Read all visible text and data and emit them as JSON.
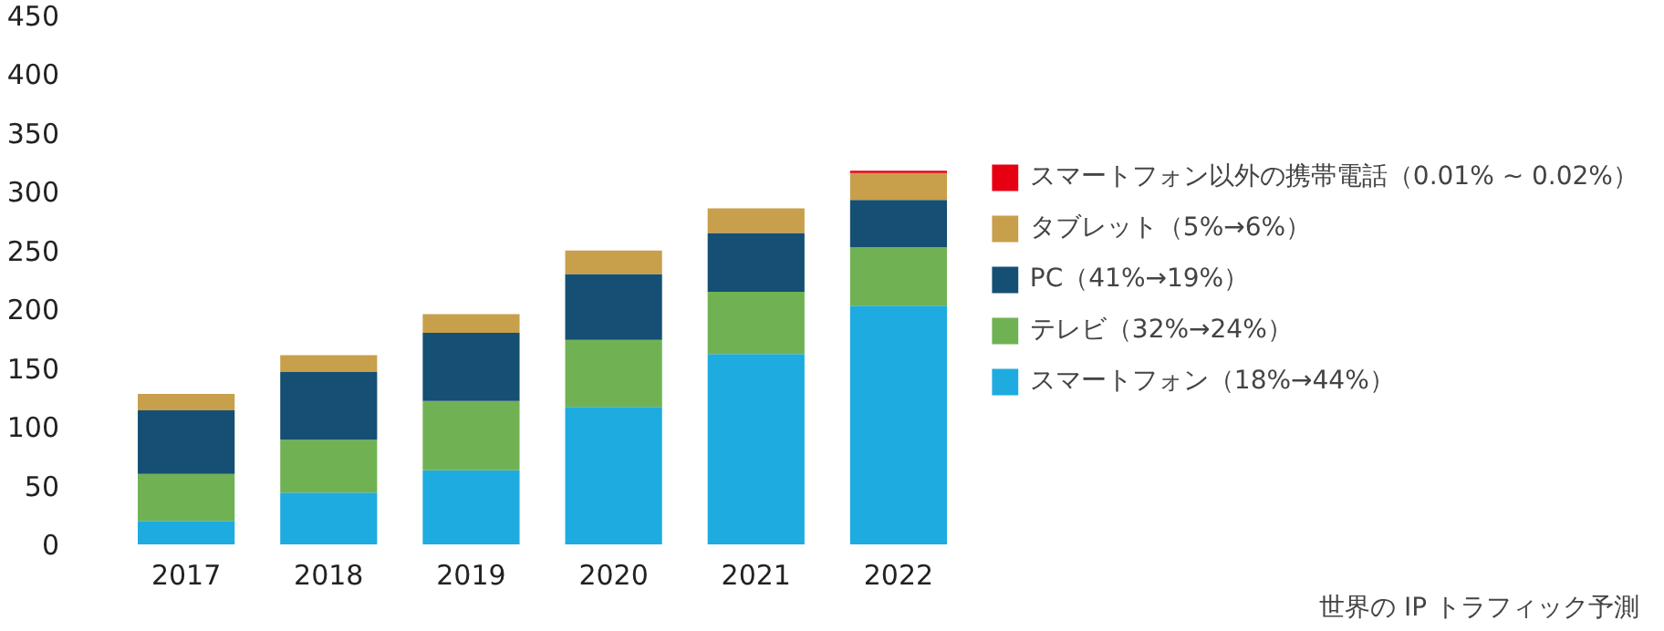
{
  "chart_data": {
    "type": "bar",
    "stacked": true,
    "categories": [
      "2017",
      "2018",
      "2019",
      "2020",
      "2021",
      "2022"
    ],
    "series": [
      {
        "name": "スマートフォン（18%→44%）",
        "color": "#1eabdf",
        "values": [
          20,
          44,
          63,
          117,
          162,
          203
        ]
      },
      {
        "name": "テレビ（32%→24%）",
        "color": "#70b253",
        "values": [
          40,
          45,
          59,
          57,
          53,
          50
        ]
      },
      {
        "name": "PC（41%→19%）",
        "color": "#154f73",
        "values": [
          54,
          58,
          58,
          56,
          50,
          40
        ]
      },
      {
        "name": "タブレット（5%→6%）",
        "color": "#c89f4b",
        "values": [
          14,
          14,
          16,
          20,
          21,
          23
        ]
      },
      {
        "name": "スマートフォン以外の携帯電話（0.01% ~ 0.02%）",
        "color": "#e60012",
        "values": [
          0,
          0,
          0,
          0,
          0,
          2
        ]
      }
    ],
    "ylim": [
      0,
      450
    ],
    "yticks": [
      0,
      50,
      100,
      150,
      200,
      250,
      300,
      350,
      400,
      450
    ],
    "grid": false,
    "legend": "right",
    "annotations": [
      "世界の IP トラフィック予測"
    ]
  }
}
